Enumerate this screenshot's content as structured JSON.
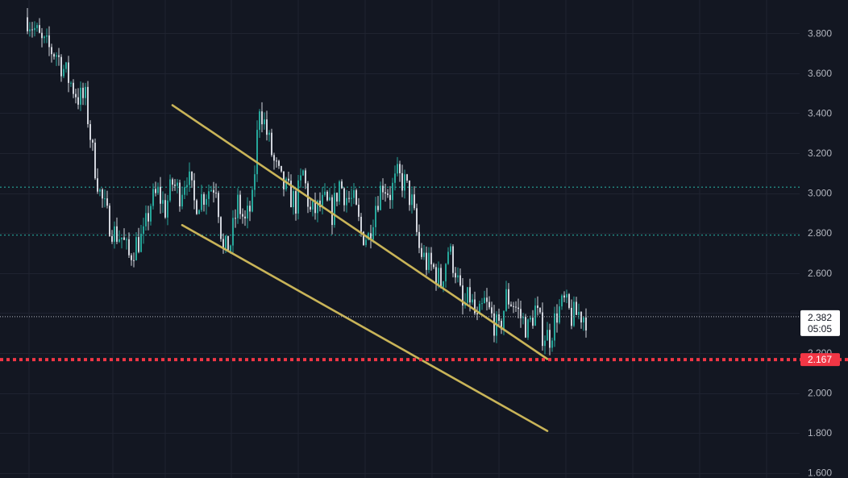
{
  "chart_data": {
    "type": "candlestick",
    "title": "",
    "y_axis": {
      "ticks": [
        "3.800",
        "3.600",
        "3.400",
        "3.200",
        "3.000",
        "2.800",
        "2.600",
        "2.200",
        "2.000",
        "1.800",
        "1.600"
      ],
      "tick_values": [
        3.8,
        3.6,
        3.4,
        3.2,
        3.0,
        2.8,
        2.6,
        2.2,
        2.0,
        1.8,
        1.6
      ],
      "ylim": [
        1.5745,
        3.9665
      ],
      "position": "right"
    },
    "grid": true,
    "bar_count": 232,
    "path_close": [
      3.88,
      3.82,
      3.75,
      3.72,
      3.7,
      3.62,
      3.55,
      3.48,
      3.47,
      3.2,
      3.0,
      2.88,
      2.8,
      2.78,
      2.68,
      2.75,
      2.78,
      2.95,
      3.0,
      2.92,
      3.05,
      3.0,
      3.1,
      2.95,
      2.98,
      3.02,
      3.05,
      2.7,
      2.75,
      2.95,
      2.85,
      2.95,
      3.45,
      3.3,
      3.15,
      3.05,
      3.0,
      2.95,
      3.1,
      2.9,
      2.92,
      2.95,
      2.9,
      3.05,
      2.98,
      2.95,
      2.8,
      2.78,
      2.95,
      3.05,
      3.0,
      3.08,
      3.05,
      2.95,
      2.72,
      2.65,
      2.62,
      2.55,
      2.72,
      2.62,
      2.42,
      2.48,
      2.35,
      2.45,
      2.38,
      2.3,
      2.48,
      2.45,
      2.38,
      2.32,
      2.42,
      2.3,
      2.28,
      2.4,
      2.45,
      2.38,
      2.4,
      2.38
    ],
    "price_range": {
      "low": 2.167,
      "high": 3.94
    },
    "price_line": {
      "value": "2.382",
      "countdown": "05:05",
      "color": "#d1d4dc"
    },
    "alert_line": {
      "value": "2.167",
      "color": "#f23645"
    },
    "horizontal_levels": [
      {
        "value": 3.03,
        "color": "#26a69a",
        "style": "dotted"
      },
      {
        "value": 2.79,
        "color": "#26a69a",
        "style": "dotted"
      }
    ],
    "trendlines": [
      {
        "name": "upper-channel",
        "color": "#c9b458",
        "from": {
          "bar": 60,
          "value": 3.44
        },
        "to": {
          "bar": 215,
          "value": 2.17
        }
      },
      {
        "name": "lower-channel",
        "color": "#c9b458",
        "from": {
          "bar": 64,
          "value": 2.84
        },
        "to": {
          "bar": 215,
          "value": 1.81
        }
      }
    ],
    "colors": {
      "background": "#131722",
      "grid": "#1f2330",
      "up": "#26a69a",
      "down": "#d1d4dc"
    }
  }
}
